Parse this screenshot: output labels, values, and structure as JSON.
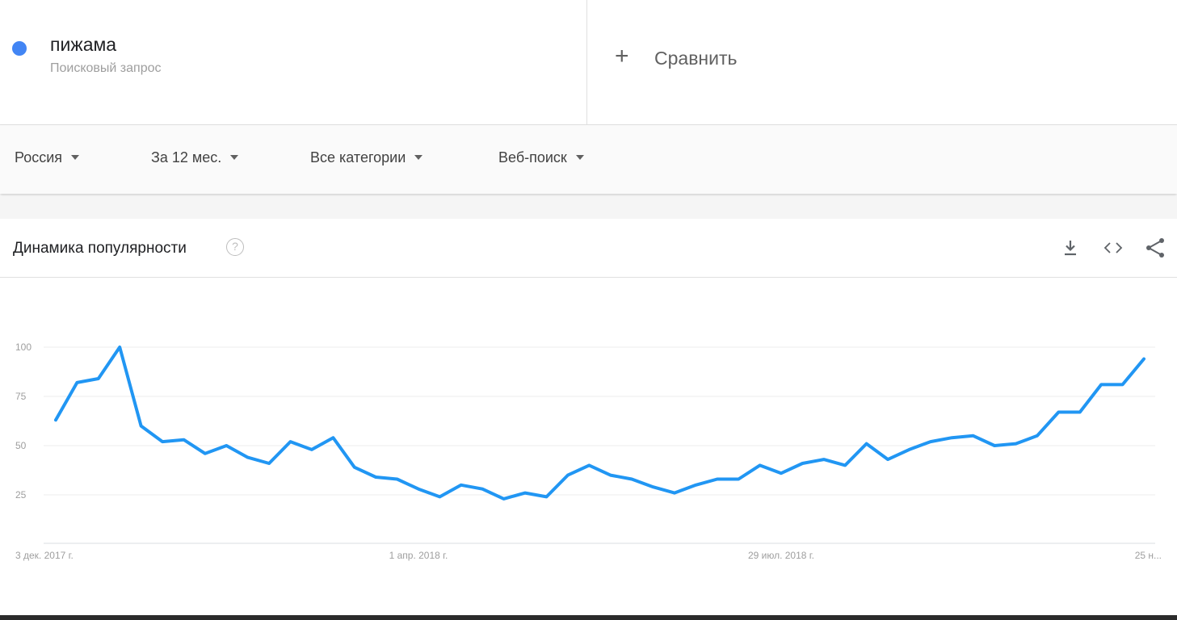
{
  "search_term": {
    "name": "пижама",
    "type": "Поисковый запрос",
    "color": "#4285f4"
  },
  "compare": {
    "plus": "+",
    "label": "Сравнить"
  },
  "filters": {
    "region": "Россия",
    "period": "За 12 мес.",
    "category": "Все категории",
    "source": "Веб-поиск"
  },
  "card": {
    "title": "Динамика популярности",
    "help_icon": "question-circle-icon",
    "actions": [
      "download-icon",
      "embed-code-icon",
      "share-icon"
    ]
  },
  "chart_data": {
    "type": "line",
    "title": "",
    "xlabel": "",
    "ylabel": "",
    "ylim": [
      0,
      100
    ],
    "y_ticks": [
      25,
      50,
      75,
      100
    ],
    "x_tick_labels": [
      "3 дек. 2017 г.",
      "1 апр. 2018 г.",
      "29 июл. 2018 г.",
      "25 н..."
    ],
    "grid": true,
    "series": [
      {
        "color": "#2196f3",
        "values": [
          63,
          82,
          84,
          100,
          60,
          52,
          53,
          46,
          50,
          44,
          41,
          52,
          48,
          54,
          39,
          34,
          33,
          28,
          24,
          30,
          28,
          23,
          26,
          24,
          35,
          40,
          35,
          33,
          29,
          26,
          30,
          33,
          33,
          40,
          36,
          41,
          43,
          40,
          51,
          43,
          48,
          52,
          54,
          55,
          50,
          51,
          55,
          67,
          67,
          81,
          81,
          94
        ]
      }
    ]
  }
}
